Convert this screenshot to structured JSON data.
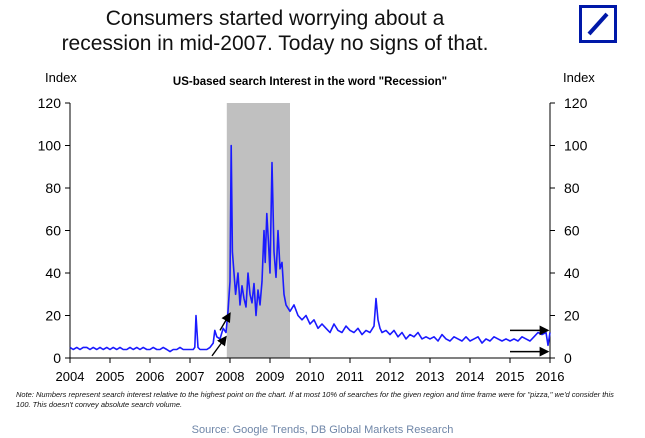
{
  "headline": {
    "line1": "Consumers started worrying about a",
    "line2": "recession in mid-2007. Today no signs of that."
  },
  "logo": {
    "icon": "deutsche-bank-logo-icon",
    "color": "#0018a8"
  },
  "chart_data": {
    "type": "line",
    "title": "US-based search Interest in the word \"Recession\"",
    "ylabel_left": "Index",
    "ylabel_right": "Index",
    "ylim": [
      0,
      120
    ],
    "yticks": [
      0,
      20,
      40,
      60,
      80,
      100,
      120
    ],
    "xlim": [
      2004,
      2016
    ],
    "xticks": [
      "2004",
      "2005",
      "2006",
      "2007",
      "2008",
      "2009",
      "2010",
      "2011",
      "2012",
      "2013",
      "2014",
      "2015",
      "2016"
    ],
    "recession_shading": {
      "start": 2007.92,
      "end": 2009.5,
      "color": "#c0c0c0"
    },
    "series": [
      {
        "color": "#1a1aff",
        "x": [
          2004.0,
          2004.08,
          2004.17,
          2004.25,
          2004.33,
          2004.42,
          2004.5,
          2004.58,
          2004.67,
          2004.75,
          2004.83,
          2004.92,
          2005.0,
          2005.08,
          2005.17,
          2005.25,
          2005.33,
          2005.42,
          2005.5,
          2005.58,
          2005.67,
          2005.75,
          2005.83,
          2005.92,
          2006.0,
          2006.08,
          2006.17,
          2006.25,
          2006.33,
          2006.42,
          2006.5,
          2006.58,
          2006.67,
          2006.75,
          2006.83,
          2006.92,
          2007.0,
          2007.08,
          2007.12,
          2007.15,
          2007.2,
          2007.25,
          2007.33,
          2007.42,
          2007.5,
          2007.58,
          2007.62,
          2007.67,
          2007.75,
          2007.83,
          2007.9,
          2007.95,
          2008.0,
          2008.03,
          2008.06,
          2008.1,
          2008.14,
          2008.2,
          2008.25,
          2008.3,
          2008.35,
          2008.4,
          2008.45,
          2008.5,
          2008.55,
          2008.6,
          2008.65,
          2008.7,
          2008.75,
          2008.8,
          2008.85,
          2008.88,
          2008.92,
          2008.96,
          2009.0,
          2009.05,
          2009.1,
          2009.15,
          2009.2,
          2009.25,
          2009.3,
          2009.35,
          2009.4,
          2009.5,
          2009.6,
          2009.7,
          2009.8,
          2009.9,
          2010.0,
          2010.1,
          2010.2,
          2010.3,
          2010.4,
          2010.5,
          2010.6,
          2010.7,
          2010.8,
          2010.9,
          2011.0,
          2011.1,
          2011.2,
          2011.3,
          2011.4,
          2011.5,
          2011.6,
          2011.65,
          2011.7,
          2011.75,
          2011.8,
          2011.9,
          2012.0,
          2012.1,
          2012.2,
          2012.3,
          2012.4,
          2012.5,
          2012.6,
          2012.7,
          2012.8,
          2012.9,
          2013.0,
          2013.1,
          2013.2,
          2013.3,
          2013.4,
          2013.5,
          2013.6,
          2013.7,
          2013.8,
          2013.9,
          2014.0,
          2014.1,
          2014.2,
          2014.3,
          2014.4,
          2014.5,
          2014.6,
          2014.7,
          2014.8,
          2014.9,
          2015.0,
          2015.1,
          2015.2,
          2015.3,
          2015.4,
          2015.5,
          2015.6,
          2015.7,
          2015.8,
          2015.9,
          2015.95,
          2016.0
        ],
        "y": [
          5,
          4,
          5,
          4,
          5,
          5,
          4,
          5,
          4,
          5,
          4,
          5,
          4,
          5,
          4,
          5,
          4,
          4,
          5,
          4,
          5,
          4,
          5,
          4,
          4,
          5,
          4,
          4,
          5,
          4,
          3,
          4,
          4,
          5,
          4,
          4,
          4,
          4,
          5,
          20,
          5,
          4,
          4,
          4,
          5,
          7,
          13,
          10,
          9,
          14,
          12,
          22,
          36,
          100,
          50,
          40,
          30,
          40,
          25,
          34,
          28,
          24,
          40,
          30,
          26,
          35,
          20,
          32,
          25,
          36,
          60,
          45,
          68,
          55,
          40,
          92,
          50,
          38,
          60,
          42,
          45,
          30,
          25,
          22,
          25,
          20,
          18,
          20,
          16,
          18,
          14,
          16,
          14,
          12,
          16,
          13,
          12,
          15,
          13,
          12,
          14,
          11,
          13,
          12,
          15,
          28,
          18,
          14,
          12,
          13,
          11,
          13,
          10,
          12,
          9,
          11,
          10,
          12,
          9,
          10,
          9,
          10,
          8,
          11,
          9,
          8,
          10,
          9,
          8,
          10,
          8,
          9,
          10,
          7,
          9,
          8,
          10,
          9,
          8,
          9,
          8,
          9,
          8,
          10,
          9,
          8,
          10,
          12,
          11,
          12,
          6,
          12
        ]
      }
    ],
    "annotations": [
      "arrow-up-2007-a",
      "arrow-up-2007-b",
      "arrow-right-2015-top",
      "arrow-right-2015-bottom"
    ]
  },
  "note": "Note: Numbers represent search interest relative to the highest point on the chart. If at most 10% of searches for the given region and time frame were for \"pizza,\" we'd consider this 100. This doesn't convey absolute search volume.",
  "source": "Source: Google Trends, DB Global Markets Research"
}
